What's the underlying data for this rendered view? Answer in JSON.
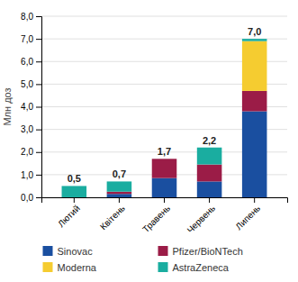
{
  "chart_data": {
    "type": "bar",
    "stacked": true,
    "ylabel": "Млн доз",
    "categories": [
      "Лютий",
      "Квітень",
      "Травень",
      "Червень",
      "Липень"
    ],
    "series": [
      {
        "name": "Sinovac",
        "color": "#1a4fa0",
        "values": [
          0.0,
          0.15,
          0.85,
          0.7,
          3.8
        ]
      },
      {
        "name": "Pfizer/BioNTech",
        "color": "#9b1c47",
        "values": [
          0.0,
          0.1,
          0.85,
          0.75,
          0.9
        ]
      },
      {
        "name": "Moderna",
        "color": "#f5cc30",
        "values": [
          0.0,
          0.0,
          0.0,
          0.0,
          2.2
        ]
      },
      {
        "name": "AstraZeneca",
        "color": "#1aada0",
        "values": [
          0.5,
          0.45,
          0.0,
          0.75,
          0.1
        ]
      }
    ],
    "totals": {
      "values": [
        0.5,
        0.7,
        1.7,
        2.2,
        7.0
      ],
      "value_labels": [
        "0,5",
        "0,7",
        "1,7",
        "2,2",
        "7,0"
      ]
    },
    "ylim": [
      0,
      8.0
    ],
    "yticks": [
      {
        "value": 0.0,
        "label": "0,0"
      },
      {
        "value": 1.0,
        "label": "1,0"
      },
      {
        "value": 2.0,
        "label": "2,0"
      },
      {
        "value": 3.0,
        "label": "3,0"
      },
      {
        "value": 4.0,
        "label": "4,0"
      },
      {
        "value": 5.0,
        "label": "5,0"
      },
      {
        "value": 6.0,
        "label": "6,0"
      },
      {
        "value": 7.0,
        "label": "7,0"
      },
      {
        "value": 8.0,
        "label": "8,0"
      }
    ],
    "grid": true,
    "legend": "bottom"
  }
}
